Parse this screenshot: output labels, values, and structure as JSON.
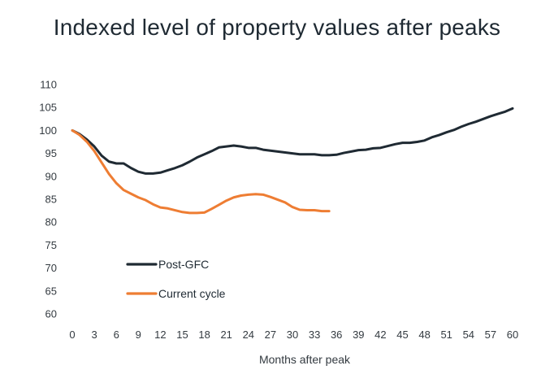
{
  "chart_data": {
    "type": "line",
    "title": "Indexed level of property values after peaks",
    "xlabel": "Months after peak",
    "ylabel": "",
    "xlim": [
      0,
      60
    ],
    "ylim": [
      60,
      110
    ],
    "x_ticks": [
      0,
      3,
      6,
      9,
      12,
      15,
      18,
      21,
      24,
      27,
      30,
      33,
      36,
      39,
      42,
      45,
      48,
      51,
      54,
      57,
      60
    ],
    "y_ticks": [
      60,
      65,
      70,
      75,
      80,
      85,
      90,
      95,
      100,
      105,
      110
    ],
    "grid": false,
    "legend_position": "bottom-left",
    "series": [
      {
        "name": "Post-GFC",
        "color": "#1f2a33",
        "x": [
          0,
          1,
          2,
          3,
          4,
          5,
          6,
          7,
          8,
          9,
          10,
          11,
          12,
          13,
          14,
          15,
          16,
          17,
          18,
          19,
          20,
          21,
          22,
          23,
          24,
          25,
          26,
          27,
          28,
          29,
          30,
          31,
          32,
          33,
          34,
          35,
          36,
          37,
          38,
          39,
          40,
          41,
          42,
          43,
          44,
          45,
          46,
          47,
          48,
          49,
          50,
          51,
          52,
          53,
          54,
          55,
          56,
          57,
          58,
          59,
          60
        ],
        "values": [
          100,
          99.2,
          98,
          96.5,
          94.5,
          93.2,
          92.8,
          92.8,
          91.8,
          91,
          90.6,
          90.6,
          90.8,
          91.3,
          91.8,
          92.4,
          93.2,
          94.1,
          94.8,
          95.5,
          96.3,
          96.5,
          96.7,
          96.5,
          96.2,
          96.2,
          95.8,
          95.6,
          95.4,
          95.2,
          95,
          94.8,
          94.8,
          94.8,
          94.6,
          94.6,
          94.7,
          95.1,
          95.4,
          95.7,
          95.8,
          96.1,
          96.2,
          96.6,
          97,
          97.3,
          97.3,
          97.5,
          97.8,
          98.5,
          99,
          99.6,
          100.1,
          100.8,
          101.4,
          101.9,
          102.5,
          103.1,
          103.6,
          104.1,
          104.8
        ]
      },
      {
        "name": "Current cycle",
        "color": "#ee7d33",
        "x": [
          0,
          1,
          2,
          3,
          4,
          5,
          6,
          7,
          8,
          9,
          10,
          11,
          12,
          13,
          14,
          15,
          16,
          17,
          18,
          19,
          20,
          21,
          22,
          23,
          24,
          25,
          26,
          27,
          28,
          29,
          30,
          31,
          32,
          33,
          34,
          35
        ],
        "values": [
          100,
          99,
          97.5,
          95.5,
          93,
          90.5,
          88.5,
          87,
          86.2,
          85.4,
          84.8,
          83.9,
          83.2,
          83,
          82.6,
          82.2,
          82,
          82,
          82.1,
          82.9,
          83.8,
          84.7,
          85.4,
          85.8,
          86,
          86.1,
          86,
          85.5,
          84.9,
          84.3,
          83.3,
          82.7,
          82.6,
          82.6,
          82.4,
          82.4
        ]
      }
    ]
  }
}
